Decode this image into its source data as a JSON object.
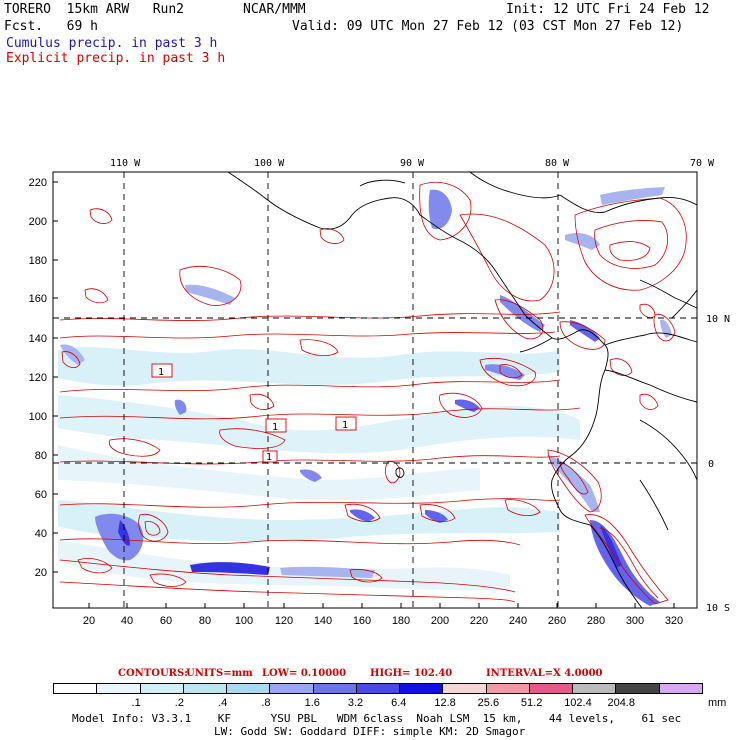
{
  "header": {
    "model": "TORERO  15km ARW   Run2",
    "org": "NCAR/MMM",
    "init": "Init: 12 UTC Fri 24 Feb 12",
    "fcst": "Fcst.   69 h",
    "valid": "Valid: 09 UTC Mon 27 Feb 12 (03 CST Mon 27 Feb 12)",
    "field1": "Cumulus precip. in past 3 h",
    "field2": "Explicit precip. in past 3 h"
  },
  "axes": {
    "top_lon_labels": [
      "110 W",
      "100 W",
      "90 W",
      "80 W",
      "70 W"
    ],
    "right_lat_labels": [
      "10 N",
      "0",
      "10 S"
    ],
    "left_y_ticks": [
      "220",
      "200",
      "180",
      "160",
      "140",
      "120",
      "100",
      "80",
      "60",
      "40",
      "20"
    ],
    "bottom_x_ticks": [
      "20",
      "40",
      "60",
      "80",
      "100",
      "120",
      "140",
      "160",
      "180",
      "200",
      "220",
      "240",
      "260",
      "280",
      "300",
      "320"
    ]
  },
  "map_labels": {
    "box_labels": [
      "1",
      "1",
      "1",
      "1"
    ]
  },
  "contours_line": {
    "contours": "CONTOURS:",
    "units": "UNITS=mm",
    "low": "LOW= 0.10000",
    "high": "HIGH=  102.40",
    "interval": "INTERVAL=X  4.0000"
  },
  "legend": {
    "colors": [
      "#ffffff",
      "#eaf6fb",
      "#d2eef6",
      "#bde6f3",
      "#a9d9ef",
      "#9aa7ee",
      "#6d75ea",
      "#4a4ae8",
      "#1010e0",
      "#f5d5d5",
      "#f09aa8",
      "#e55a88",
      "#bbbbbb",
      "#444444",
      "#d8a8f0"
    ],
    "labels": [
      ".1",
      ".2",
      ".4",
      ".8",
      "1.6",
      "3.2",
      "6.4",
      "12.8",
      "25.6",
      "51.2",
      "102.4",
      "204.8"
    ],
    "unit": "mm"
  },
  "footer": {
    "line1": "Model Info: V3.3.1    KF      YSU PBL   WDM 6class  Noah LSM  15 km,    44 levels,    61 sec",
    "line2": "LW: Godd SW: Goddard DIFF: simple KM: 2D Smagor"
  }
}
